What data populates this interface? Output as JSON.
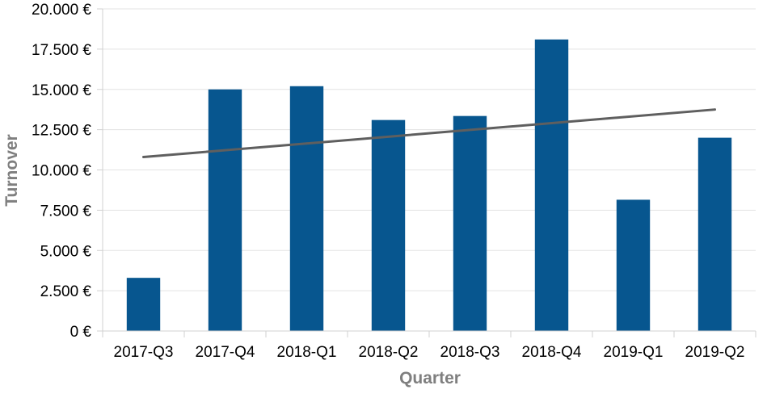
{
  "chart_data": {
    "type": "bar",
    "categories": [
      "2017-Q3",
      "2017-Q4",
      "2018-Q1",
      "2018-Q2",
      "2018-Q3",
      "2018-Q4",
      "2019-Q1",
      "2019-Q2"
    ],
    "series": [
      {
        "values": [
          3300,
          15000,
          15200,
          13100,
          13350,
          18100,
          8150,
          12000
        ]
      }
    ],
    "trendline": {
      "type": "linear",
      "start": 10800,
      "end": 13750
    },
    "xlabel": "Quarter",
    "ylabel": "Turnover",
    "ylim": [
      0,
      20000
    ],
    "yticks": [
      0,
      2500,
      5000,
      7500,
      10000,
      12500,
      15000,
      17500,
      20000
    ],
    "ytick_labels": [
      "0 €",
      "2.500 €",
      "5.000 €",
      "7.500 €",
      "10.000 €",
      "12.500 €",
      "15.000 €",
      "17.500 €",
      "20.000 €"
    ],
    "grid": true,
    "colors": {
      "bar": "#07568f",
      "trend": "#5f5f5f",
      "grid": "#e3e3e3",
      "axis": "#d0d0d0",
      "title": "#7f7f7f"
    }
  }
}
